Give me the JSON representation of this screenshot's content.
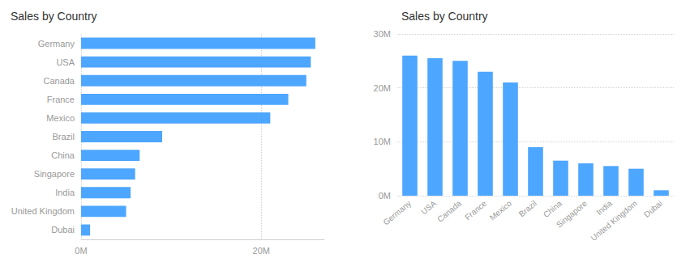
{
  "chart_data": [
    {
      "type": "bar",
      "orientation": "horizontal",
      "title": "Sales by Country",
      "categories": [
        "Germany",
        "USA",
        "Canada",
        "France",
        "Mexico",
        "Brazil",
        "China",
        "Singapore",
        "India",
        "United Kingdom",
        "Dubai"
      ],
      "values": [
        26000000,
        25500000,
        25000000,
        23000000,
        21000000,
        9000000,
        6500000,
        6000000,
        5500000,
        5000000,
        1000000
      ],
      "color": "#4da6ff",
      "xlim": [
        0,
        27000000
      ],
      "xticks": [
        {
          "value": 0,
          "label": "0M"
        },
        {
          "value": 20000000,
          "label": "20M"
        }
      ],
      "grid": true
    },
    {
      "type": "bar",
      "title": "Sales by Country",
      "categories": [
        "Germany",
        "USA",
        "Canada",
        "France",
        "Mexico",
        "Brazil",
        "China",
        "Singapore",
        "India",
        "United Kingdom",
        "Dubai"
      ],
      "values": [
        26000000,
        25500000,
        25000000,
        23000000,
        21000000,
        9000000,
        6500000,
        6000000,
        5500000,
        5000000,
        1000000
      ],
      "color": "#4da6ff",
      "ylim": [
        0,
        30000000
      ],
      "yticks": [
        {
          "value": 0,
          "label": "0M"
        },
        {
          "value": 10000000,
          "label": "10M"
        },
        {
          "value": 20000000,
          "label": "20M"
        },
        {
          "value": 30000000,
          "label": "30M"
        }
      ],
      "grid": true
    }
  ]
}
